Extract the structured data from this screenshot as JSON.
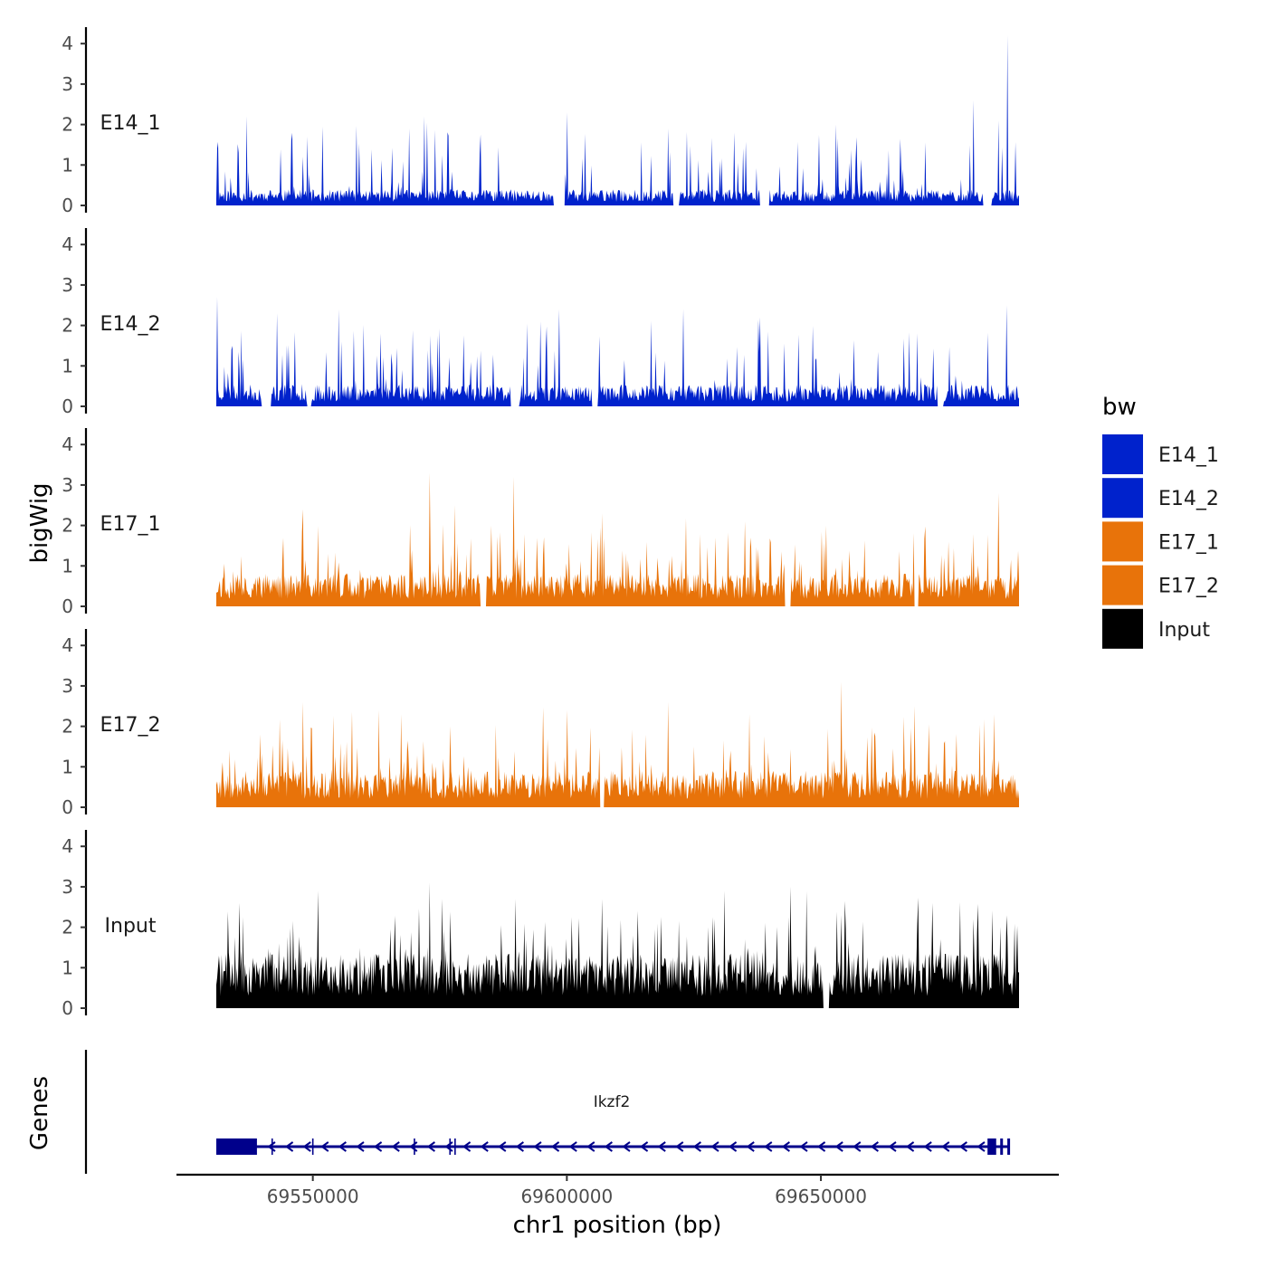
{
  "chart_data": {
    "type": "area",
    "title": "",
    "xlabel": "chr1 position (bp)",
    "ylabel": "bigWig",
    "genes_label": "Genes",
    "xlim": [
      69531000,
      69689000
    ],
    "x_ticks": [
      69550000,
      69600000,
      69650000
    ],
    "x_tick_labels": [
      "69550000",
      "69600000",
      "69650000"
    ],
    "ylim": [
      0,
      4.3
    ],
    "y_ticks": [
      0,
      1,
      2,
      3,
      4
    ],
    "y_tick_labels": [
      "0",
      "1",
      "2",
      "3",
      "4"
    ],
    "legend": {
      "title": "bw",
      "placement": "right",
      "entries": [
        {
          "label": "E14_1",
          "color": "#0022CC"
        },
        {
          "label": "E14_2",
          "color": "#0022CC"
        },
        {
          "label": "E17_1",
          "color": "#E8730A"
        },
        {
          "label": "E17_2",
          "color": "#E8730A"
        },
        {
          "label": "Input",
          "color": "#000000"
        }
      ]
    },
    "series": [
      {
        "name": "E14_1",
        "color": "#0022CC",
        "seed": 11,
        "base": 0.22,
        "spike_rate": 0.09,
        "spike_max": 1.7,
        "peaks": [
          [
            69537000,
            2.2
          ],
          [
            69549000,
            1.7
          ],
          [
            69569000,
            1.9
          ],
          [
            69572000,
            2.2
          ],
          [
            69600000,
            2.3
          ],
          [
            69620000,
            1.9
          ],
          [
            69633000,
            1.8
          ],
          [
            69653000,
            2.0
          ],
          [
            69680000,
            2.6
          ],
          [
            69685000,
            2.1
          ],
          [
            69686700,
            4.2
          ]
        ],
        "gaps": [
          [
            69597500,
            69599500
          ],
          [
            69621000,
            69622000
          ],
          [
            69638000,
            69639800
          ],
          [
            69682000,
            69683500
          ]
        ]
      },
      {
        "name": "E14_2",
        "color": "#0022CC",
        "seed": 23,
        "base": 0.3,
        "spike_rate": 0.11,
        "spike_max": 1.8,
        "peaks": [
          [
            69531200,
            2.7
          ],
          [
            69543000,
            2.3
          ],
          [
            69549500,
            2.7
          ],
          [
            69555000,
            2.4
          ],
          [
            69598500,
            2.4
          ],
          [
            69623000,
            2.4
          ],
          [
            69638000,
            2.2
          ],
          [
            69669000,
            1.8
          ],
          [
            69686500,
            2.5
          ]
        ],
        "gaps": [
          [
            69540000,
            69541800
          ],
          [
            69549000,
            69549700
          ],
          [
            69589000,
            69590500
          ],
          [
            69605000,
            69606000
          ],
          [
            69673000,
            69674000
          ]
        ]
      },
      {
        "name": "E17_1",
        "color": "#E8730A",
        "seed": 37,
        "base": 0.45,
        "spike_rate": 0.12,
        "spike_max": 1.6,
        "peaks": [
          [
            69548000,
            2.4
          ],
          [
            69573000,
            3.3
          ],
          [
            69578000,
            2.5
          ],
          [
            69589500,
            3.2
          ],
          [
            69607000,
            2.3
          ],
          [
            69635000,
            2.1
          ],
          [
            69651000,
            2.0
          ],
          [
            69669000,
            3.2
          ],
          [
            69685000,
            2.8
          ]
        ],
        "gaps": [
          [
            69583000,
            69584000
          ],
          [
            69643000,
            69644000
          ],
          [
            69668500,
            69669200
          ]
        ]
      },
      {
        "name": "E17_2",
        "color": "#E8730A",
        "seed": 53,
        "base": 0.5,
        "spike_rate": 0.13,
        "spike_max": 1.6,
        "peaks": [
          [
            69548000,
            2.6
          ],
          [
            69563000,
            2.4
          ],
          [
            69577000,
            2.0
          ],
          [
            69600000,
            2.4
          ],
          [
            69620000,
            2.6
          ],
          [
            69636000,
            2.3
          ],
          [
            69654000,
            3.1
          ],
          [
            69668500,
            2.5
          ],
          [
            69684000,
            2.3
          ]
        ],
        "gaps": [
          [
            69606500,
            69607300
          ]
        ]
      },
      {
        "name": "Input",
        "color": "#000000",
        "seed": 71,
        "base": 0.75,
        "spike_rate": 0.13,
        "spike_max": 1.6,
        "peaks": [
          [
            69535500,
            2.6
          ],
          [
            69551000,
            2.9
          ],
          [
            69573000,
            3.1
          ],
          [
            69575500,
            2.7
          ],
          [
            69607000,
            2.7
          ],
          [
            69614000,
            2.4
          ],
          [
            69631000,
            2.9
          ],
          [
            69644000,
            3.0
          ],
          [
            69654000,
            2.3
          ],
          [
            69672000,
            2.6
          ],
          [
            69680000,
            2.2
          ]
        ],
        "gaps": [
          [
            69650500,
            69651500
          ]
        ]
      }
    ],
    "gene": {
      "name": "Ikzf2",
      "strand": "-",
      "start": 69531000,
      "end": 69687000,
      "color": "#00008B",
      "exons": [
        [
          69531000,
          69539000
        ],
        [
          69682800,
          69684500
        ],
        [
          69685300,
          69685800
        ],
        [
          69686700,
          69687000
        ]
      ],
      "exon_lines": [
        69542000,
        69550000,
        69570000,
        69577000,
        69578000
      ]
    }
  }
}
